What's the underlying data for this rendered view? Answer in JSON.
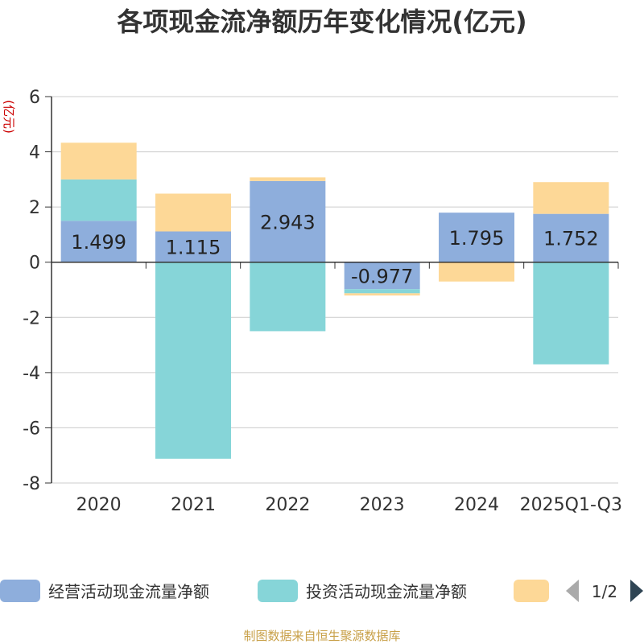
{
  "chart_data": {
    "type": "bar",
    "stacked": true,
    "title": "各项现金流净额历年变化情况(亿元)",
    "ylabel": "(亿元)",
    "xlabel": "",
    "ylim": [
      -8,
      6
    ],
    "yticks": [
      6,
      4,
      2,
      0,
      -2,
      -4,
      -6,
      -8
    ],
    "grid": true,
    "categories": [
      "2020",
      "2021",
      "2022",
      "2023",
      "2024",
      "2025Q1-Q3"
    ],
    "series": [
      {
        "name": "经营活动现金流量净额",
        "color": "#8eaedc",
        "values": [
          1.499,
          1.115,
          2.943,
          -0.977,
          1.795,
          1.752
        ],
        "labels": [
          "1.499",
          "1.115",
          "2.943",
          "-0.977",
          "1.795",
          "1.752"
        ],
        "show_labels": true
      },
      {
        "name": "投资活动现金流量净额",
        "color": "#86d5d8",
        "values": [
          1.5,
          -7.12,
          -2.5,
          -0.15,
          0,
          -3.7
        ],
        "show_labels": false
      },
      {
        "name": "",
        "color": "#fdd897",
        "values": [
          1.33,
          1.37,
          0.13,
          -0.08,
          -0.7,
          1.15
        ],
        "show_labels": false
      }
    ],
    "legend": {
      "position": "bottom",
      "page": "1/2"
    },
    "source": "制图数据来自恒生聚源数据库"
  }
}
